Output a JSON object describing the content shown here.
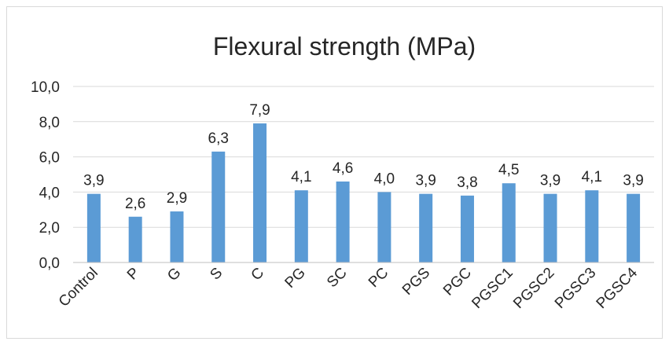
{
  "chart_data": {
    "type": "bar",
    "title": "Flexural strength (MPa)",
    "xlabel": "",
    "ylabel": "",
    "categories": [
      "Control",
      "P",
      "G",
      "S",
      "C",
      "PG",
      "SC",
      "PC",
      "PGS",
      "PGC",
      "PGSC1",
      "PGSC2",
      "PGSC3",
      "PGSC4"
    ],
    "values": [
      3.9,
      2.6,
      2.9,
      6.3,
      7.9,
      4.1,
      4.6,
      4.0,
      3.9,
      3.8,
      4.5,
      3.9,
      4.1,
      3.9
    ],
    "value_labels": [
      "3,9",
      "2,6",
      "2,9",
      "6,3",
      "7,9",
      "4,1",
      "4,6",
      "4,0",
      "3,9",
      "3,8",
      "4,5",
      "3,9",
      "4,1",
      "3,9"
    ],
    "ylim": [
      0,
      10
    ],
    "yticks": [
      0,
      2,
      4,
      6,
      8,
      10
    ],
    "ytick_labels": [
      "0,0",
      "2,0",
      "4,0",
      "6,0",
      "8,0",
      "10,0"
    ],
    "grid": true,
    "legend": "none",
    "bar_color": "#5b9bd5"
  }
}
